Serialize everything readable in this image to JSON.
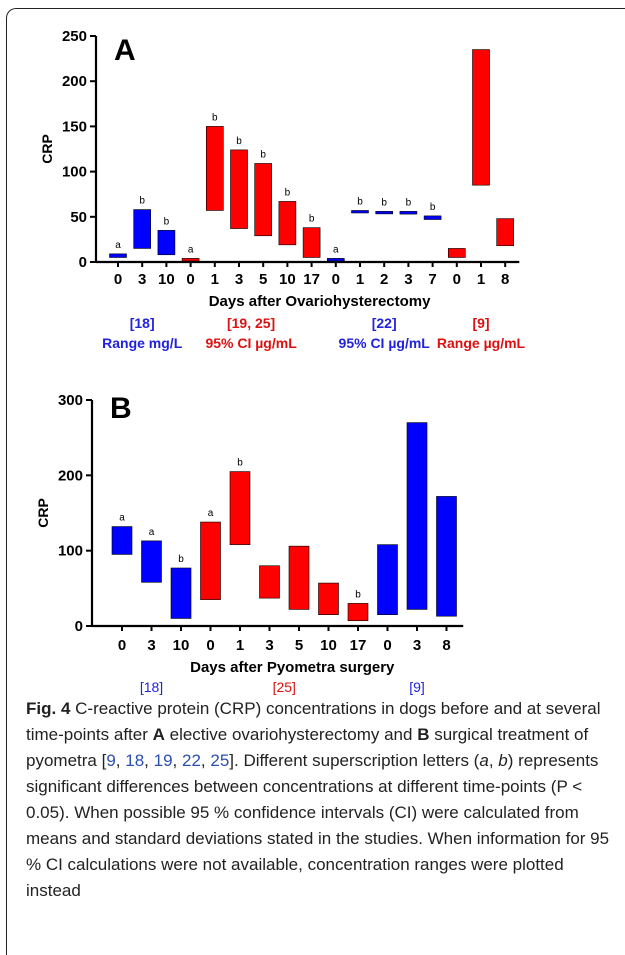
{
  "colors": {
    "blue": "#0000ff",
    "red": "#ff0000",
    "ref_blue": "#2222dd",
    "ref_red": "#dd1111",
    "axis": "#000000"
  },
  "chart_data": [
    {
      "panel": "A",
      "type": "floating-bar",
      "ylabel": "CRP",
      "xlabel": "Days after Ovariohysterectomy",
      "ylim": [
        0,
        250
      ],
      "yticks": [
        0,
        50,
        100,
        150,
        200,
        250
      ],
      "grid": false,
      "groups": [
        {
          "ref": "[18]",
          "measure": "Range mg/L",
          "color": "#0000ff",
          "bars": [
            {
              "x": "0",
              "low": 5,
              "high": 9,
              "sig": "a"
            },
            {
              "x": "3",
              "low": 15,
              "high": 58,
              "sig": "b"
            },
            {
              "x": "10",
              "low": 8,
              "high": 35,
              "sig": "b"
            }
          ]
        },
        {
          "ref": "[19, 25]",
          "measure": "95% CI µg/mL",
          "color": "#ff0000",
          "bars": [
            {
              "x": "0",
              "low": 1,
              "high": 4,
              "sig": "a"
            },
            {
              "x": "1",
              "low": 57,
              "high": 150,
              "sig": "b"
            },
            {
              "x": "3",
              "low": 37,
              "high": 124,
              "sig": "b"
            },
            {
              "x": "5",
              "low": 29,
              "high": 109,
              "sig": "b"
            },
            {
              "x": "10",
              "low": 19,
              "high": 67,
              "sig": "b"
            },
            {
              "x": "17",
              "low": 5,
              "high": 38,
              "sig": "b"
            }
          ]
        },
        {
          "ref": "[22]",
          "measure": "95% CI µg/mL",
          "color": "#0000ff",
          "bars": [
            {
              "x": "0",
              "low": 2,
              "high": 4,
              "sig": "a"
            },
            {
              "x": "1",
              "low": 55,
              "high": 57,
              "sig": "b"
            },
            {
              "x": "2",
              "low": 54,
              "high": 56,
              "sig": "b"
            },
            {
              "x": "3",
              "low": 53,
              "high": 56,
              "sig": "b"
            },
            {
              "x": "7",
              "low": 47,
              "high": 51,
              "sig": "b"
            }
          ]
        },
        {
          "ref": "[9]",
          "measure": "Range µg/mL",
          "color": "#ff0000",
          "bars": [
            {
              "x": "0",
              "low": 5,
              "high": 15,
              "sig": ""
            },
            {
              "x": "1",
              "low": 85,
              "high": 235,
              "sig": ""
            },
            {
              "x": "8",
              "low": 18,
              "high": 48,
              "sig": ""
            }
          ]
        }
      ]
    },
    {
      "panel": "B",
      "type": "floating-bar",
      "ylabel": "CRP",
      "xlabel": "Days after Pyometra surgery",
      "ylim": [
        0,
        300
      ],
      "yticks": [
        0,
        100,
        200,
        300
      ],
      "grid": false,
      "groups": [
        {
          "ref": "[18]",
          "measure": "Range mg/L",
          "color": "#0000ff",
          "bars": [
            {
              "x": "0",
              "low": 95,
              "high": 132,
              "sig": "a"
            },
            {
              "x": "3",
              "low": 58,
              "high": 113,
              "sig": "a"
            },
            {
              "x": "10",
              "low": 10,
              "high": 77,
              "sig": "b"
            }
          ]
        },
        {
          "ref": "[25]",
          "measure": "95% CI µg/mL",
          "color": "#ff0000",
          "bars": [
            {
              "x": "0",
              "low": 35,
              "high": 138,
              "sig": "a"
            },
            {
              "x": "1",
              "low": 108,
              "high": 205,
              "sig": "b"
            },
            {
              "x": "3",
              "low": 37,
              "high": 80,
              "sig": ""
            },
            {
              "x": "5",
              "low": 22,
              "high": 106,
              "sig": ""
            },
            {
              "x": "10",
              "low": 15,
              "high": 57,
              "sig": ""
            },
            {
              "x": "17",
              "low": 7,
              "high": 30,
              "sig": "b"
            }
          ]
        },
        {
          "ref": "[9]",
          "measure": "Range µg/mL",
          "color": "#0000ff",
          "bars": [
            {
              "x": "0",
              "low": 15,
              "high": 108,
              "sig": ""
            },
            {
              "x": "3",
              "low": 22,
              "high": 270,
              "sig": ""
            },
            {
              "x": "8",
              "low": 13,
              "high": 172,
              "sig": ""
            }
          ]
        }
      ]
    }
  ],
  "caption": {
    "fig_label": "Fig. 4",
    "segments": [
      {
        "t": " C-reactive protein (CRP) concentrations in dogs before and at several time-points after "
      },
      {
        "t": "A",
        "bold": true
      },
      {
        "t": " elective ovariohysterectomy and "
      },
      {
        "t": "B",
        "bold": true
      },
      {
        "t": " surgical treatment of pyometra ["
      },
      {
        "t": "9",
        "ref": true
      },
      {
        "t": ", "
      },
      {
        "t": "18",
        "ref": true
      },
      {
        "t": ", "
      },
      {
        "t": "19",
        "ref": true
      },
      {
        "t": ", "
      },
      {
        "t": "22",
        "ref": true
      },
      {
        "t": ", "
      },
      {
        "t": "25",
        "ref": true
      },
      {
        "t": "]. Different superscription letters ("
      },
      {
        "t": "a",
        "italic": true
      },
      {
        "t": ", "
      },
      {
        "t": "b",
        "italic": true
      },
      {
        "t": ") represents significant differences between concentrations at different time-points (P < 0.05). When possible 95 % confidence intervals (CI) were calculated from means and standard deviations stated in the studies. When information for 95 % CI calculations were not available, concentration ranges were plotted instead"
      }
    ]
  }
}
